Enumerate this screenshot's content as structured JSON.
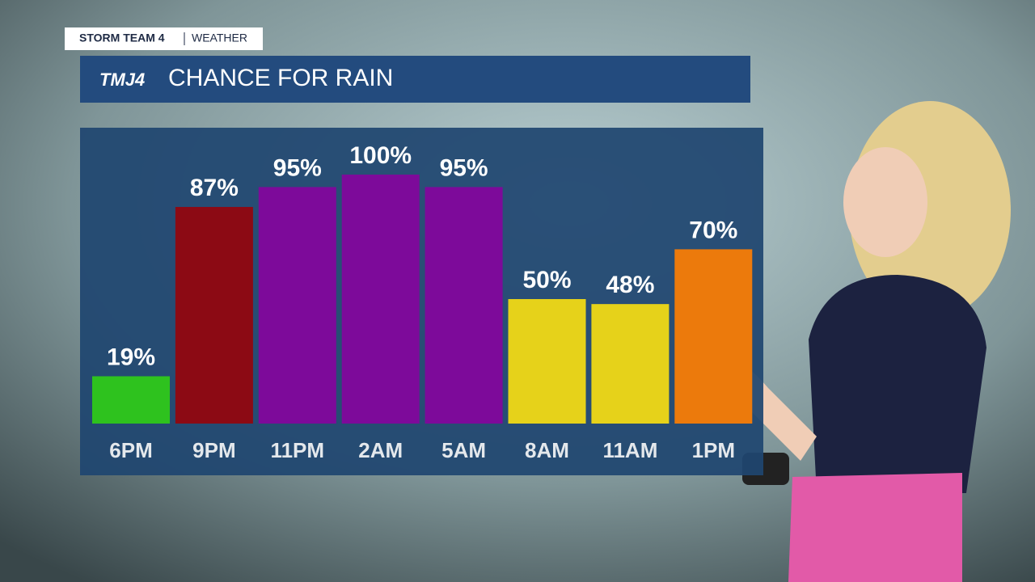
{
  "header": {
    "brand": "STORM TEAM 4",
    "section": "WEATHER",
    "logo": "TMJ4"
  },
  "chart_data": {
    "type": "bar",
    "title": "CHANCE FOR RAIN",
    "categories": [
      "6PM",
      "9PM",
      "11PM",
      "2AM",
      "5AM",
      "8AM",
      "11AM",
      "1PM"
    ],
    "values": [
      19,
      87,
      95,
      100,
      95,
      50,
      48,
      70
    ],
    "value_labels": [
      "19%",
      "87%",
      "95%",
      "100%",
      "95%",
      "50%",
      "48%",
      "70%"
    ],
    "colors": [
      "#2ec21e",
      "#8c0a14",
      "#7d0a9a",
      "#7d0a9a",
      "#7d0a9a",
      "#e6d21a",
      "#e6d21a",
      "#ec7a0c"
    ]
  }
}
